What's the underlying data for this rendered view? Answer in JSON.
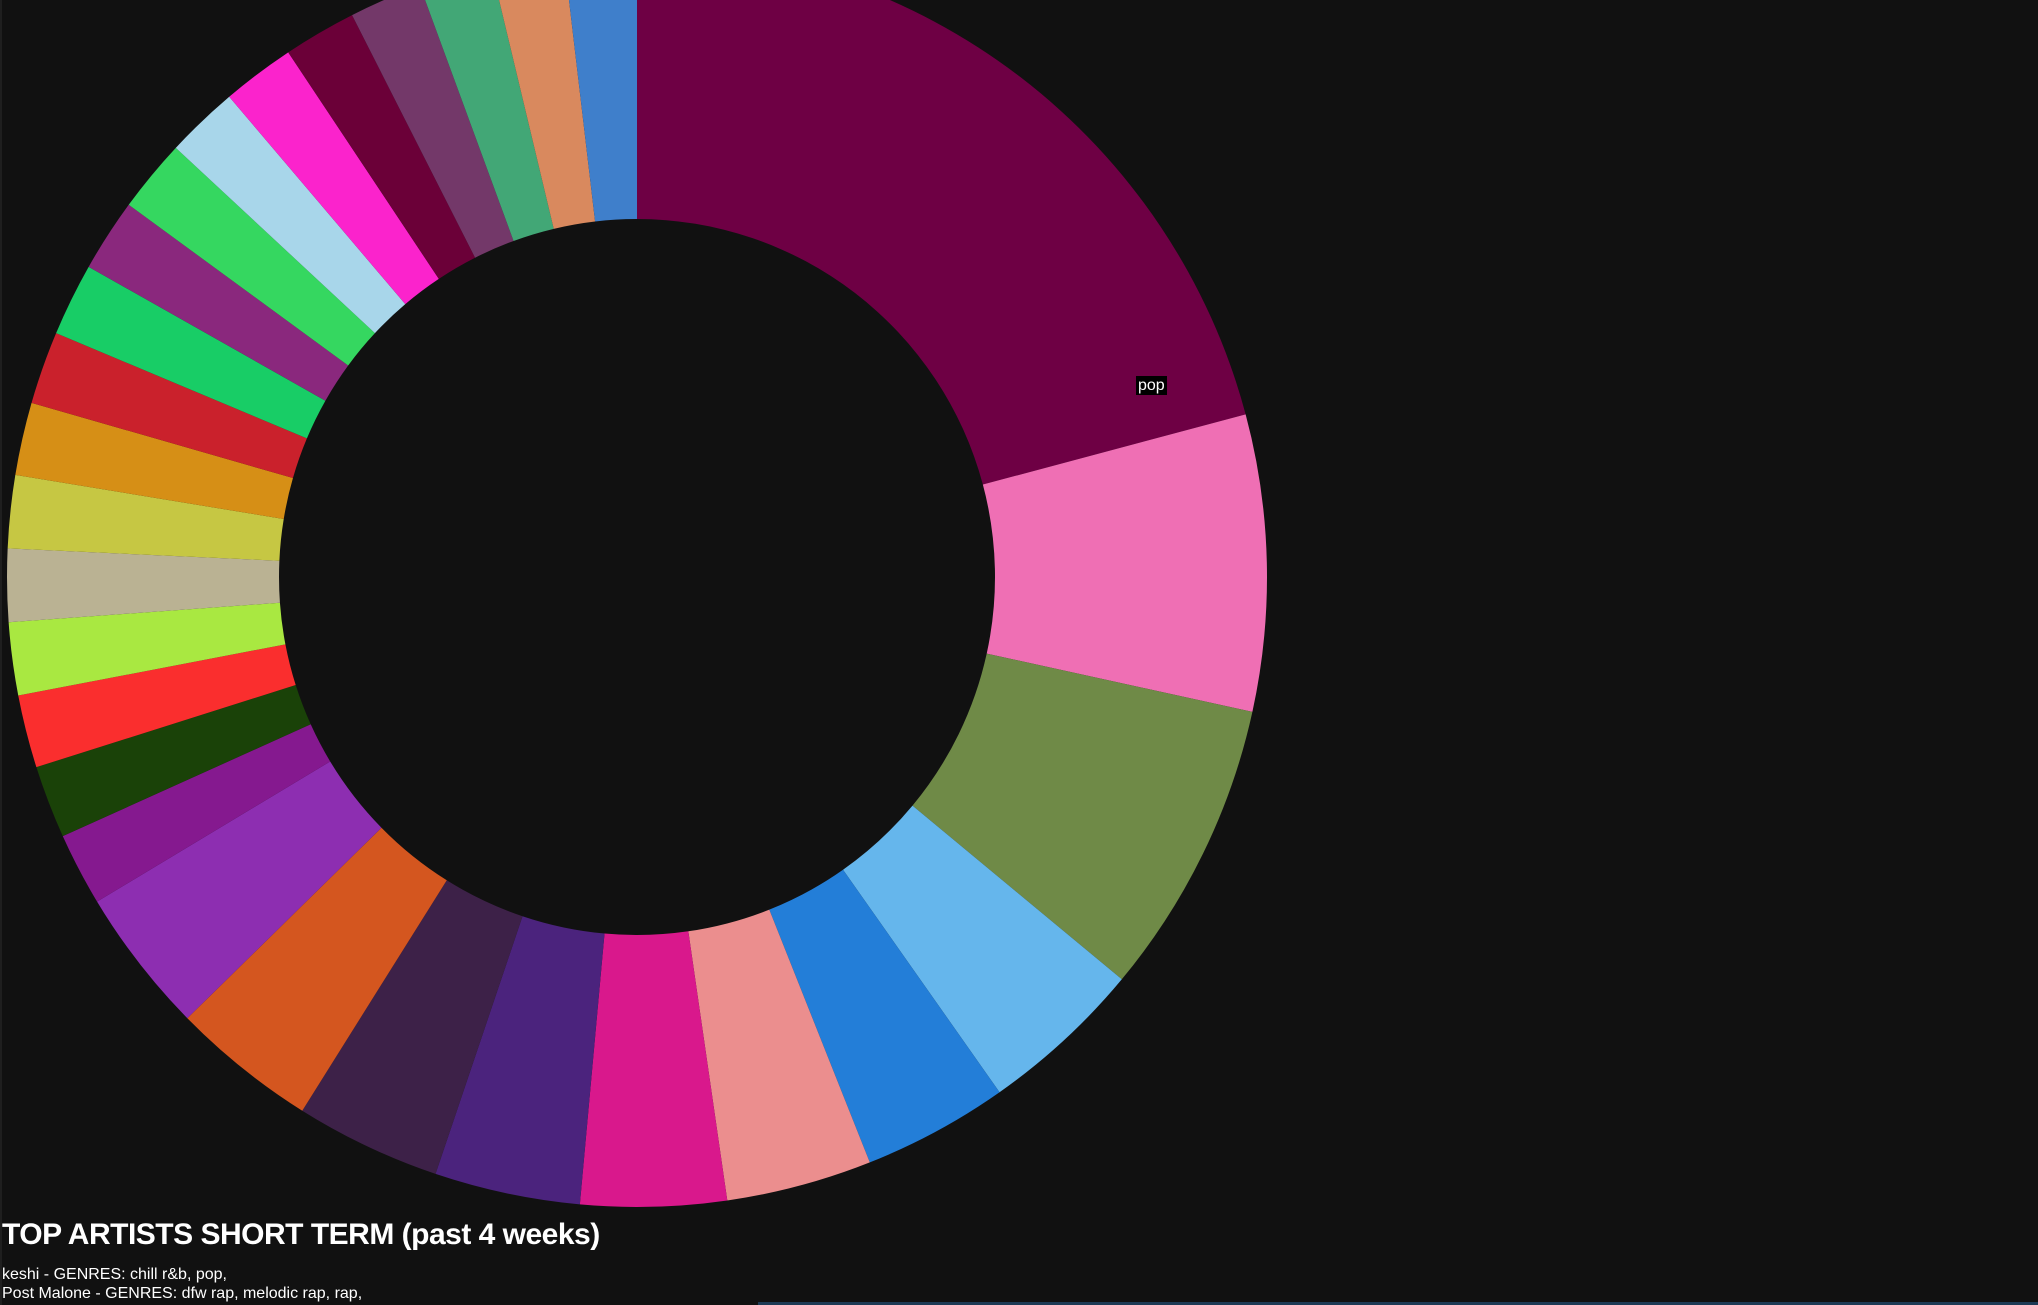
{
  "title": "TOP ARTISTS SHORT TERM (past 4 weeks)",
  "tooltip": "pop",
  "artists": [
    {
      "name": "keshi",
      "genres_text": "keshi - GENRES: chill r&b, pop,"
    },
    {
      "name": "Post Malone",
      "genres_text": "Post Malone - GENRES: dfw rap, melodic rap, rap,"
    }
  ],
  "chart_data": {
    "type": "pie",
    "donut": true,
    "legend": "none",
    "slices": [
      {
        "value": 86.5,
        "color": "#6e0044"
      },
      {
        "value": 31.5,
        "color": "#ef6fb4"
      },
      {
        "value": 31.5,
        "color": "#6f8a47"
      },
      {
        "value": 17.5,
        "color": "#65b6ec"
      },
      {
        "value": 15.5,
        "color": "#237ed8"
      },
      {
        "value": 15.5,
        "color": "#eb8e8e"
      },
      {
        "value": 15.5,
        "color": "#d9188c"
      },
      {
        "value": 15.5,
        "color": "#4b237d"
      },
      {
        "value": 15.5,
        "color": "#3d2148"
      },
      {
        "value": 15.5,
        "color": "#d4561f"
      },
      {
        "value": 15.5,
        "color": "#8d2eb1"
      },
      {
        "value": 7.75,
        "color": "#85198f"
      },
      {
        "value": 7.75,
        "color": "#1a4208"
      },
      {
        "value": 7.75,
        "color": "#fa2e2e"
      },
      {
        "value": 7.75,
        "color": "#a9e841"
      },
      {
        "value": 7.75,
        "color": "#bab293"
      },
      {
        "value": 7.75,
        "color": "#c6c743"
      },
      {
        "value": 7.75,
        "color": "#d68f16"
      },
      {
        "value": 7.75,
        "color": "#ca212c"
      },
      {
        "value": 7.75,
        "color": "#18cd66"
      },
      {
        "value": 7.75,
        "color": "#8a287d"
      },
      {
        "value": 7.75,
        "color": "#35d760"
      },
      {
        "value": 7.75,
        "color": "#a8d6ea"
      },
      {
        "value": 7.75,
        "color": "#fb23cc"
      },
      {
        "value": 7.75,
        "color": "#6b0038"
      },
      {
        "value": 7.75,
        "color": "#733869"
      },
      {
        "value": 7.75,
        "color": "#42a776"
      },
      {
        "value": 7.75,
        "color": "#d9895e"
      },
      {
        "value": 7.75,
        "color": "#3f7fcb"
      }
    ]
  }
}
